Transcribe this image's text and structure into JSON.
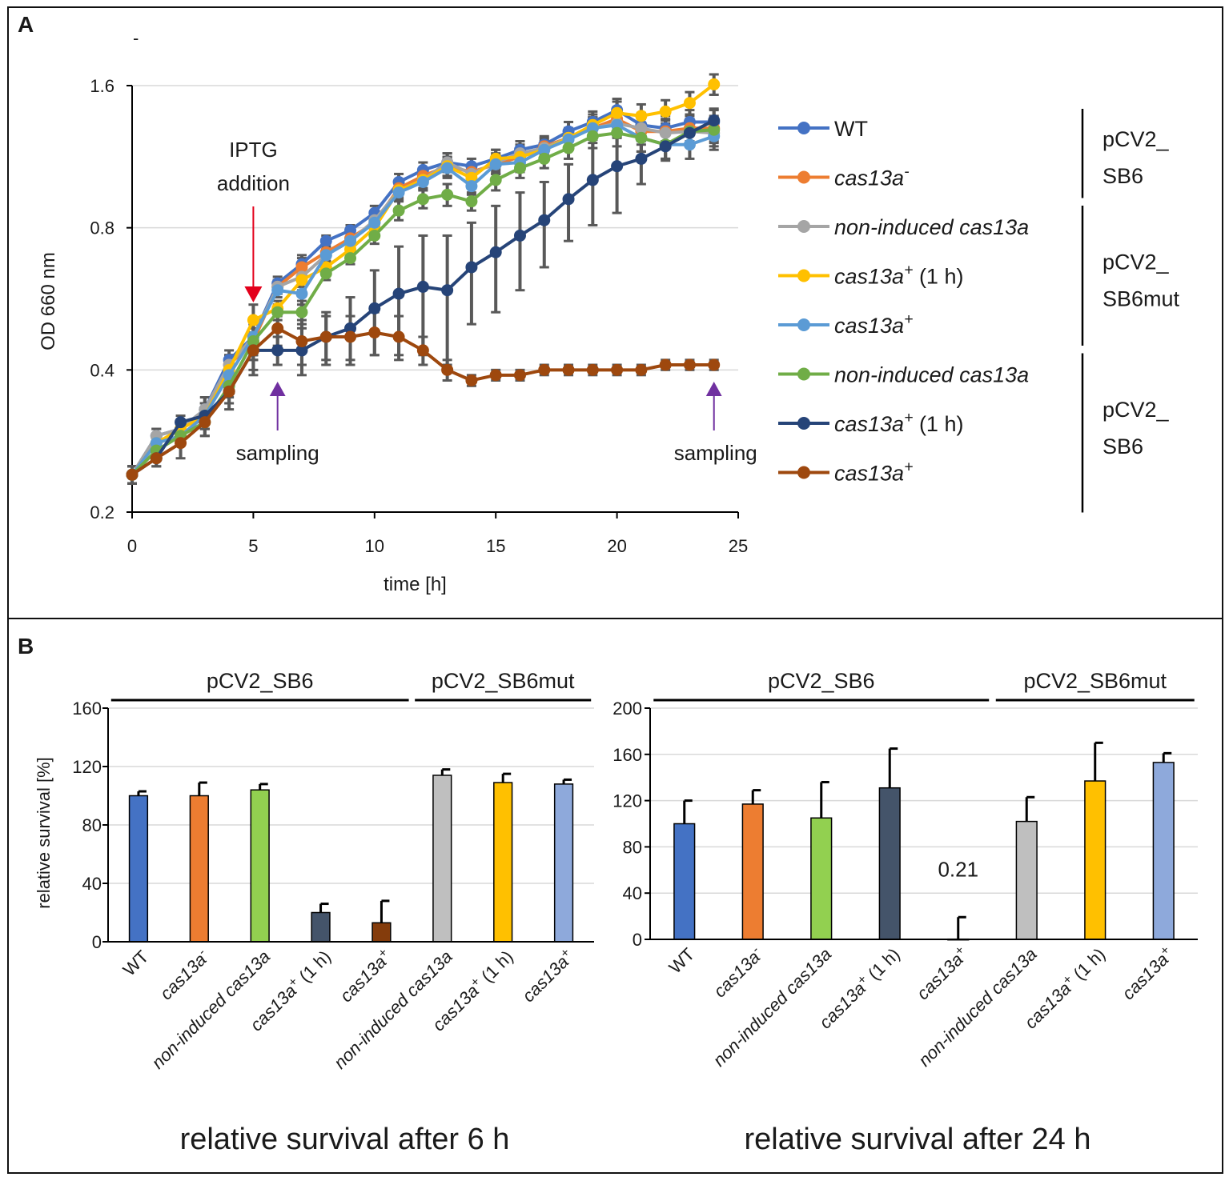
{
  "panel_letters": {
    "a": "A",
    "b": "B"
  },
  "stray_mark": "-",
  "colors": {
    "WT": "#4472C4",
    "cas13a_minus": "#ED7D31",
    "gray": "#A5A5A5",
    "yellow": "#FFC000",
    "lightblue": "#5B9BD5",
    "green": "#70AD47",
    "navy": "#264478",
    "brown": "#9E480E",
    "errorbar": "#595959",
    "arrow_red": "#E3001B",
    "arrow_purple": "#7030A0"
  },
  "chart_data": [
    {
      "type": "line",
      "panel": "A",
      "title": "",
      "xlabel": "time [h]",
      "ylabel": "OD 660 nm",
      "yscale": "log2",
      "xlim": [
        0,
        25
      ],
      "ylim": [
        0.2,
        1.6
      ],
      "x_ticks": [
        "0",
        "5",
        "10",
        "15",
        "20",
        "25"
      ],
      "y_ticks": [
        "0.2",
        "0.4",
        "0.8",
        "1.6"
      ],
      "y_tick_values": [
        0.2,
        0.4,
        0.8,
        1.6
      ],
      "grid": "horizontal",
      "x": [
        0,
        1,
        2,
        3,
        4,
        5,
        6,
        7,
        8,
        9,
        10,
        11,
        12,
        13,
        14,
        15,
        16,
        17,
        18,
        19,
        20,
        21,
        22,
        23,
        24
      ],
      "series": [
        {
          "key": "wt",
          "name": "WT",
          "color": "#4472C4",
          "values": [
            0.24,
            0.29,
            0.3,
            0.33,
            0.42,
            0.47,
            0.61,
            0.67,
            0.75,
            0.79,
            0.86,
            1.0,
            1.06,
            1.1,
            1.08,
            1.12,
            1.17,
            1.2,
            1.28,
            1.34,
            1.42,
            1.32,
            1.3,
            1.34,
            1.34
          ],
          "errors": [
            0.01,
            0.01,
            0.01,
            0.02,
            0.02,
            0.04,
            0.02,
            0.03,
            0.02,
            0.02,
            0.03,
            0.04,
            0.04,
            0.05,
            0.04,
            0.05,
            0.05,
            0.05,
            0.06,
            0.07,
            0.08,
            0.08,
            0.08,
            0.08,
            0.08
          ]
        },
        {
          "key": "minus",
          "name": "cas13a-",
          "color": "#ED7D31",
          "values": [
            0.24,
            0.28,
            0.29,
            0.32,
            0.41,
            0.46,
            0.6,
            0.66,
            0.71,
            0.76,
            0.82,
            0.97,
            1.03,
            1.08,
            1.05,
            1.09,
            1.13,
            1.19,
            1.24,
            1.3,
            1.36,
            1.28,
            1.28,
            1.3,
            1.3
          ],
          "errors": [
            0.01,
            0.01,
            0.01,
            0.02,
            0.02,
            0.04,
            0.02,
            0.03,
            0.02,
            0.02,
            0.03,
            0.04,
            0.04,
            0.05,
            0.04,
            0.05,
            0.05,
            0.05,
            0.06,
            0.07,
            0.08,
            0.08,
            0.08,
            0.08,
            0.08
          ]
        },
        {
          "key": "mut_noninduced",
          "name": "non-induced cas13a",
          "color": "#A5A5A5",
          "values": [
            0.24,
            0.29,
            0.3,
            0.33,
            0.41,
            0.47,
            0.6,
            0.63,
            0.7,
            0.75,
            0.83,
            0.96,
            1.01,
            1.1,
            1.04,
            1.1,
            1.15,
            1.18,
            1.24,
            1.3,
            1.33,
            1.3,
            1.27,
            1.28,
            1.27
          ],
          "errors": [
            0.01,
            0.01,
            0.01,
            0.02,
            0.02,
            0.04,
            0.02,
            0.03,
            0.02,
            0.02,
            0.03,
            0.04,
            0.04,
            0.05,
            0.04,
            0.05,
            0.05,
            0.05,
            0.06,
            0.07,
            0.08,
            0.08,
            0.08,
            0.08,
            0.08
          ]
        },
        {
          "key": "mut_plus1h",
          "name": "cas13a+ (1 h)",
          "color": "#FFC000",
          "values": [
            0.24,
            0.28,
            0.3,
            0.32,
            0.4,
            0.51,
            0.54,
            0.62,
            0.66,
            0.72,
            0.8,
            0.96,
            1.01,
            1.08,
            1.02,
            1.12,
            1.13,
            1.17,
            1.24,
            1.32,
            1.4,
            1.38,
            1.41,
            1.47,
            1.61
          ],
          "errors": [
            0.01,
            0.01,
            0.01,
            0.02,
            0.02,
            0.04,
            0.02,
            0.03,
            0.02,
            0.02,
            0.03,
            0.04,
            0.04,
            0.05,
            0.04,
            0.05,
            0.05,
            0.05,
            0.06,
            0.07,
            0.08,
            0.08,
            0.08,
            0.08,
            0.08
          ]
        },
        {
          "key": "mut_plus",
          "name": "cas13a+",
          "color": "#5B9BD5",
          "values": [
            0.24,
            0.28,
            0.29,
            0.32,
            0.39,
            0.47,
            0.59,
            0.58,
            0.7,
            0.75,
            0.82,
            0.95,
            1.0,
            1.07,
            0.98,
            1.09,
            1.1,
            1.17,
            1.23,
            1.3,
            1.32,
            1.24,
            1.2,
            1.2,
            1.25
          ],
          "errors": [
            0.01,
            0.01,
            0.01,
            0.02,
            0.02,
            0.04,
            0.02,
            0.03,
            0.02,
            0.02,
            0.03,
            0.04,
            0.04,
            0.05,
            0.04,
            0.05,
            0.05,
            0.05,
            0.06,
            0.07,
            0.08,
            0.08,
            0.08,
            0.08,
            0.08
          ]
        },
        {
          "key": "sb6_noninduced",
          "name": "non-induced cas13a",
          "color": "#70AD47",
          "values": [
            0.24,
            0.27,
            0.29,
            0.31,
            0.37,
            0.46,
            0.53,
            0.53,
            0.64,
            0.69,
            0.77,
            0.87,
            0.92,
            0.94,
            0.91,
            1.01,
            1.07,
            1.12,
            1.18,
            1.25,
            1.27,
            1.24,
            1.2,
            1.28,
            1.29
          ],
          "errors": [
            0.01,
            0.01,
            0.01,
            0.02,
            0.02,
            0.04,
            0.02,
            0.03,
            0.02,
            0.02,
            0.03,
            0.04,
            0.04,
            0.05,
            0.04,
            0.05,
            0.05,
            0.05,
            0.06,
            0.07,
            0.08,
            0.08,
            0.08,
            0.08,
            0.08
          ]
        },
        {
          "key": "sb6_plus1h",
          "name": "cas13a+ (1 h)",
          "color": "#264478",
          "values": [
            0.24,
            0.26,
            0.31,
            0.32,
            0.36,
            0.44,
            0.44,
            0.44,
            0.47,
            0.49,
            0.54,
            0.58,
            0.6,
            0.59,
            0.66,
            0.71,
            0.77,
            0.83,
            0.92,
            1.01,
            1.08,
            1.12,
            1.19,
            1.27,
            1.35
          ],
          "errors": [
            0.01,
            0.01,
            0.01,
            0.02,
            0.02,
            0.04,
            0.03,
            0.05,
            0.06,
            0.08,
            0.11,
            0.15,
            0.17,
            0.18,
            0.16,
            0.18,
            0.18,
            0.17,
            0.17,
            0.2,
            0.22,
            0.13,
            0.08,
            0.08,
            0.08
          ]
        },
        {
          "key": "sb6_plus",
          "name": "cas13a+",
          "color": "#9E480E",
          "values": [
            0.24,
            0.26,
            0.28,
            0.31,
            0.36,
            0.44,
            0.49,
            0.46,
            0.47,
            0.47,
            0.48,
            0.47,
            0.44,
            0.4,
            0.38,
            0.39,
            0.39,
            0.4,
            0.4,
            0.4,
            0.4,
            0.4,
            0.41,
            0.41,
            0.41
          ],
          "errors": [
            0.01,
            0.01,
            0.02,
            0.02,
            0.03,
            0.05,
            0.04,
            0.05,
            0.05,
            0.05,
            0.05,
            0.05,
            0.03,
            0.02,
            0.01,
            0.01,
            0.01,
            0.01,
            0.01,
            0.01,
            0.01,
            0.01,
            0.01,
            0.01,
            0.01
          ]
        }
      ],
      "legend": {
        "position": "right",
        "entries": [
          {
            "series": "wt",
            "main": "WT",
            "italic": false,
            "sup": "",
            "suffix": ""
          },
          {
            "series": "minus",
            "main": "cas13a",
            "italic": true,
            "sup": "-",
            "suffix": ""
          },
          {
            "series": "mut_noninduced",
            "prefix": "non-induced ",
            "main": "cas13a",
            "italic": true,
            "sup": "",
            "suffix": ""
          },
          {
            "series": "mut_plus1h",
            "main": "cas13a",
            "italic": true,
            "sup": "+",
            "suffix": " (1 h)"
          },
          {
            "series": "mut_plus",
            "main": "cas13a",
            "italic": true,
            "sup": "+",
            "suffix": ""
          },
          {
            "series": "sb6_noninduced",
            "prefix": "non-induced ",
            "main": "cas13a",
            "italic": true,
            "sup": "",
            "suffix": ""
          },
          {
            "series": "sb6_plus1h",
            "main": "cas13a",
            "italic": true,
            "sup": "+",
            "suffix": " (1 h)"
          },
          {
            "series": "sb6_plus",
            "main": "cas13a",
            "italic": true,
            "sup": "+",
            "suffix": ""
          }
        ],
        "groups": [
          {
            "label_lines": [
              "pCV2_",
              "SB6"
            ],
            "from": 0,
            "to": 1
          },
          {
            "label_lines": [
              "pCV2_",
              "SB6mut"
            ],
            "from": 2,
            "to": 4
          },
          {
            "label_lines": [
              "pCV2_",
              "SB6"
            ],
            "from": 5,
            "to": 7
          }
        ]
      },
      "annotations": [
        {
          "text_lines": [
            "IPTG",
            "addition"
          ],
          "x": 5,
          "arrow": "down",
          "color": "#E3001B"
        },
        {
          "text": "sampling",
          "x": 6,
          "arrow": "up",
          "color": "#7030A0"
        },
        {
          "text": "sampling",
          "x": 24,
          "arrow": "up",
          "color": "#7030A0"
        }
      ]
    },
    {
      "type": "bar",
      "panel": "B-left",
      "title": "relative survival after 6 h",
      "ylabel": "relative survival [%]",
      "ylim": [
        0,
        160
      ],
      "y_ticks": [
        0,
        40,
        80,
        120,
        160
      ],
      "grid": "horizontal",
      "categories": [
        {
          "prefix": "",
          "main": "WT",
          "sup": "",
          "suffix": "",
          "italic": false
        },
        {
          "prefix": "",
          "main": "cas13a",
          "sup": "-",
          "suffix": "",
          "italic": true
        },
        {
          "prefix": "non-induced ",
          "main": "cas13a",
          "sup": "",
          "suffix": "",
          "italic": true
        },
        {
          "prefix": "",
          "main": "cas13a",
          "sup": "+",
          "suffix": " (1 h)",
          "italic": true
        },
        {
          "prefix": "",
          "main": "cas13a",
          "sup": "+",
          "suffix": "",
          "italic": true
        },
        {
          "prefix": "non-induced ",
          "main": "cas13a",
          "sup": "",
          "suffix": "",
          "italic": true
        },
        {
          "prefix": "",
          "main": "cas13a",
          "sup": "+",
          "suffix": " (1 h)",
          "italic": true
        },
        {
          "prefix": "",
          "main": "cas13a",
          "sup": "+",
          "suffix": "",
          "italic": true
        }
      ],
      "values": [
        100,
        100,
        104,
        20,
        13,
        114,
        109,
        108
      ],
      "errors": [
        3,
        9,
        4,
        6,
        15,
        4,
        6,
        3
      ],
      "bar_colors": [
        "#4472C4",
        "#ED7D31",
        "#92D050",
        "#44546A",
        "#843C0C",
        "#BFBFBF",
        "#FFC000",
        "#8EA9DB"
      ],
      "value_labels": [],
      "groups": [
        {
          "label": "pCV2_SB6",
          "from": 0,
          "to": 4
        },
        {
          "label": "pCV2_SB6mut",
          "from": 5,
          "to": 7
        }
      ]
    },
    {
      "type": "bar",
      "panel": "B-right",
      "title": "relative survival after 24 h",
      "ylabel": "",
      "ylim": [
        0,
        200
      ],
      "y_ticks": [
        0,
        40,
        80,
        120,
        160,
        200
      ],
      "grid": "horizontal",
      "categories": [
        {
          "prefix": "",
          "main": "WT",
          "sup": "",
          "suffix": "",
          "italic": false
        },
        {
          "prefix": "",
          "main": "cas13a",
          "sup": "-",
          "suffix": "",
          "italic": true
        },
        {
          "prefix": "non-induced ",
          "main": "cas13a",
          "sup": "",
          "suffix": "",
          "italic": true
        },
        {
          "prefix": "",
          "main": "cas13a",
          "sup": "+",
          "suffix": " (1 h)",
          "italic": true
        },
        {
          "prefix": "",
          "main": "cas13a",
          "sup": "+",
          "suffix": "",
          "italic": true
        },
        {
          "prefix": "non-induced ",
          "main": "cas13a",
          "sup": "",
          "suffix": "",
          "italic": true
        },
        {
          "prefix": "",
          "main": "cas13a",
          "sup": "+",
          "suffix": " (1 h)",
          "italic": true
        },
        {
          "prefix": "",
          "main": "cas13a",
          "sup": "+",
          "suffix": "",
          "italic": true
        }
      ],
      "values": [
        100,
        117,
        105,
        131,
        0.21,
        102,
        137,
        153
      ],
      "errors": [
        20,
        12,
        31,
        34,
        19,
        21,
        33,
        8
      ],
      "bar_colors": [
        "#4472C4",
        "#ED7D31",
        "#92D050",
        "#44546A",
        "#843C0C",
        "#BFBFBF",
        "#FFC000",
        "#8EA9DB"
      ],
      "value_labels": [
        {
          "index": 4,
          "text": "0.21"
        }
      ],
      "groups": [
        {
          "label": "pCV2_SB6",
          "from": 0,
          "to": 4
        },
        {
          "label": "pCV2_SB6mut",
          "from": 5,
          "to": 7
        }
      ]
    }
  ]
}
